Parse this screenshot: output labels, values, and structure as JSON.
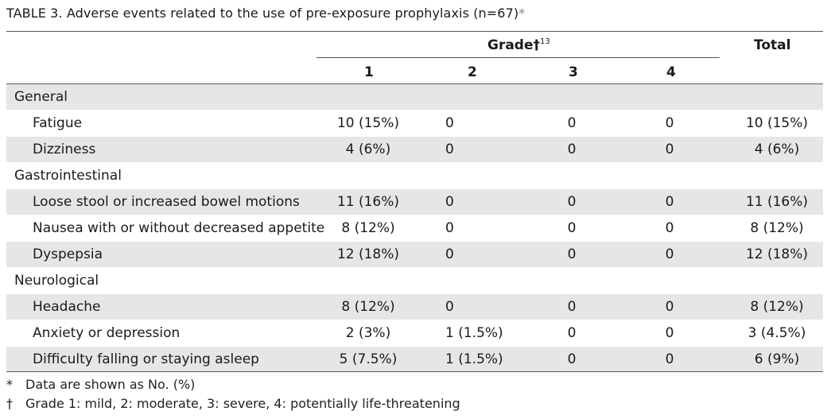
{
  "caption": {
    "text": "TABLE 3. Adverse events related to the use of pre-exposure prophylaxis (n=67)",
    "marker": "*"
  },
  "header": {
    "grade_label": "Grade†",
    "grade_ref": "13",
    "total_label": "Total",
    "grade_cols": [
      "1",
      "2",
      "3",
      "4"
    ]
  },
  "rows": [
    {
      "type": "section",
      "label": "General"
    },
    {
      "type": "item",
      "label": "Fatigue",
      "g1": "10 (15%)",
      "g2": "0",
      "g3": "0",
      "g4": "0",
      "total": "10 (15%)"
    },
    {
      "type": "item",
      "label": "Dizziness",
      "g1": "4 (6%)",
      "g2": "0",
      "g3": "0",
      "g4": "0",
      "total": "4 (6%)"
    },
    {
      "type": "section",
      "label": "Gastrointestinal"
    },
    {
      "type": "item",
      "label": "Loose stool or increased bowel motions",
      "g1": "11 (16%)",
      "g2": "0",
      "g3": "0",
      "g4": "0",
      "total": "11 (16%)"
    },
    {
      "type": "item",
      "label": "Nausea with or without decreased appetite",
      "g1": "8 (12%)",
      "g2": "0",
      "g3": "0",
      "g4": "0",
      "total": "8 (12%)"
    },
    {
      "type": "item",
      "label": "Dyspepsia",
      "g1": "12 (18%)",
      "g2": "0",
      "g3": "0",
      "g4": "0",
      "total": "12 (18%)"
    },
    {
      "type": "section",
      "label": "Neurological"
    },
    {
      "type": "item",
      "label": "Headache",
      "g1": "8 (12%)",
      "g2": "0",
      "g3": "0",
      "g4": "0",
      "total": "8 (12%)"
    },
    {
      "type": "item",
      "label": "Anxiety or depression",
      "g1": "2 (3%)",
      "g2": "1 (1.5%)",
      "g3": "0",
      "g4": "0",
      "total": "3 (4.5%)"
    },
    {
      "type": "item",
      "label": "Difficulty falling or staying asleep",
      "g1": "5 (7.5%)",
      "g2": "1 (1.5%)",
      "g3": "0",
      "g4": "0",
      "total": "6 (9%)"
    }
  ],
  "footnotes": [
    {
      "symbol": "*",
      "text": "Data are shown as No. (%)"
    },
    {
      "symbol": "†",
      "text": "Grade 1: mild, 2: moderate, 3: severe, 4: potentially life-threatening"
    }
  ]
}
